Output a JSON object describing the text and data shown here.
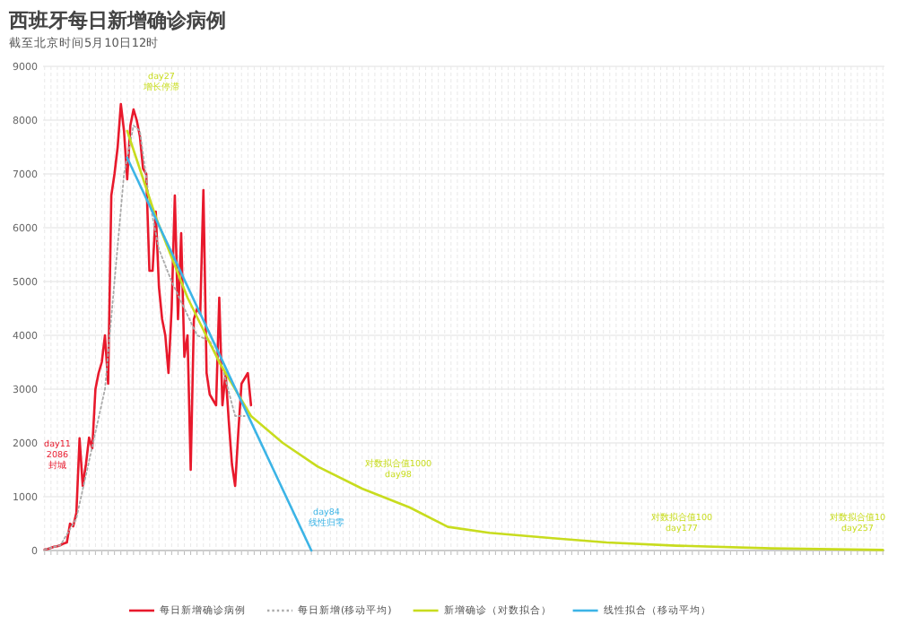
{
  "chart_data": {
    "type": "line",
    "title": "西班牙每日新增确诊病例",
    "subtitle": "截至北京时间5月10日12时",
    "categories": [
      null,
      null,
      null,
      null,
      null,
      null,
      null,
      null,
      null,
      null,
      null,
      null,
      null,
      null,
      null,
      null,
      null,
      null,
      null,
      null,
      null,
      null,
      null,
      null,
      null,
      null,
      null,
      null,
      null,
      null,
      null,
      null,
      null,
      null,
      null,
      null,
      null,
      null,
      null,
      null,
      null,
      null,
      null,
      null,
      null,
      null,
      null,
      null,
      null,
      null,
      null,
      null,
      null,
      null,
      null,
      null,
      null,
      null,
      null,
      null,
      null,
      null,
      null,
      null,
      null,
      null,
      null,
      null,
      null,
      null,
      null,
      null,
      null,
      null,
      null,
      null,
      null,
      null,
      null,
      null,
      null,
      null,
      null,
      null,
      null,
      null,
      null,
      null,
      null,
      null,
      null,
      null,
      null,
      null,
      null,
      null,
      null,
      null,
      null,
      null,
      null,
      null,
      null,
      null,
      null,
      null,
      null,
      null,
      null,
      null,
      null,
      null,
      null,
      null,
      null,
      null,
      null,
      null,
      null,
      null,
      null,
      null,
      null,
      null,
      null,
      null,
      null,
      null,
      null,
      null,
      null,
      null,
      null,
      null,
      null,
      null,
      null,
      null,
      null,
      null,
      null,
      null,
      null,
      null,
      null,
      null,
      null,
      null,
      null,
      null,
      null,
      null,
      null,
      null,
      null,
      null,
      null,
      null,
      null,
      null,
      null,
      null,
      null,
      null,
      null,
      null,
      null,
      null,
      null,
      null,
      null,
      null,
      null,
      null,
      null,
      null,
      null,
      null,
      null,
      null,
      null,
      null,
      null,
      null,
      null,
      null,
      null,
      null,
      null,
      null,
      null,
      null,
      null,
      null,
      null,
      null,
      null,
      null,
      null,
      null,
      null,
      null,
      null,
      null,
      null,
      null,
      null,
      null,
      null,
      null,
      null,
      null,
      null,
      null,
      null,
      null,
      null,
      null,
      null,
      null,
      null,
      null,
      null,
      null,
      null,
      null,
      null,
      null,
      null,
      null,
      null,
      null,
      null,
      null,
      null,
      null,
      null,
      null,
      null,
      null,
      null,
      null,
      null,
      null,
      null,
      null,
      null,
      null,
      null,
      null,
      null,
      null,
      null,
      null,
      null,
      null,
      null,
      null,
      null,
      null,
      null,
      null,
      null,
      null,
      null
    ],
    "ylim": [
      0,
      9000
    ],
    "yticks": [
      0,
      1000,
      2000,
      3000,
      4000,
      5000,
      6000,
      7000,
      8000,
      9000
    ],
    "grid": true,
    "legend": "bottom",
    "marker": "none",
    "series": [
      {
        "name": "每日新增确诊病例",
        "color": "#e8192c",
        "line_style": "solid",
        "values": [
          20,
          30,
          50,
          70,
          80,
          100,
          130,
          150,
          500,
          450,
          700,
          2086,
          1200,
          1600,
          2100,
          1900,
          3000,
          3300,
          3500,
          4000,
          3100,
          6600,
          7000,
          7500,
          8300,
          7800,
          6900,
          7900,
          8200,
          8000,
          7700,
          7100,
          7000,
          5200,
          5200,
          6300,
          4900,
          4300,
          4000,
          3300,
          4500,
          6600,
          4300,
          5900,
          3600,
          4000,
          1500,
          4300,
          4500,
          4400,
          6700,
          3300,
          2900,
          2800,
          2700,
          4700,
          2700,
          3300,
          2400,
          1600,
          1200,
          2200,
          3100,
          3200,
          3300,
          2700,
          null,
          null,
          null,
          null,
          null,
          null,
          null,
          null,
          null,
          null,
          null,
          null,
          null,
          null,
          null,
          null,
          null,
          null,
          null,
          null,
          null,
          null,
          null,
          null,
          null,
          null,
          null,
          null,
          null,
          null,
          null,
          null,
          null,
          null,
          null,
          null,
          null,
          null,
          null,
          null,
          null,
          null,
          null,
          null,
          null,
          null,
          null,
          null,
          null,
          null,
          null,
          null,
          null,
          null,
          null,
          null,
          null,
          null,
          null,
          null,
          null,
          null,
          null,
          null,
          null,
          null,
          null,
          null,
          null,
          null,
          null,
          null,
          null,
          null,
          null,
          null,
          null,
          null,
          null,
          null,
          null,
          null,
          null,
          null,
          null,
          null,
          null,
          null,
          null,
          null,
          null,
          null,
          null,
          null,
          null,
          null,
          null,
          null,
          null,
          null,
          null,
          null,
          null,
          null,
          null,
          null,
          null,
          null,
          null,
          null,
          null,
          null,
          null,
          null,
          null,
          null,
          null,
          null,
          null,
          null,
          null,
          null,
          null,
          null,
          null,
          null,
          null,
          null,
          null,
          null,
          null,
          null,
          null,
          null,
          null,
          null,
          null,
          null,
          null,
          null,
          null,
          null,
          null,
          null,
          null,
          null,
          null,
          null,
          null,
          null,
          null,
          null,
          null,
          null,
          null,
          null,
          null,
          null,
          null,
          null,
          null,
          null,
          null,
          null,
          null,
          null,
          null,
          null,
          null,
          null,
          null,
          null,
          null,
          null,
          null,
          null,
          null,
          null,
          null,
          null,
          null,
          null,
          null,
          null,
          null,
          null,
          null,
          null,
          null,
          null,
          null,
          null,
          null,
          null,
          null,
          null,
          null,
          null,
          null
        ]
      },
      {
        "name": "每日新增(移动平均)",
        "color": "#aaaaaa",
        "line_style": "dotted",
        "values": [
          20,
          null,
          null,
          null,
          null,
          100,
          null,
          null,
          null,
          null,
          600,
          null,
          null,
          1400,
          null,
          null,
          2200,
          null,
          null,
          3000,
          null,
          null,
          5000,
          null,
          null,
          7000,
          null,
          null,
          7900,
          null,
          7800,
          null,
          null,
          6500,
          null,
          null,
          5600,
          null,
          null,
          null,
          5000,
          null,
          null,
          null,
          4500,
          null,
          null,
          null,
          4000,
          null,
          null,
          null,
          3900,
          null,
          null,
          null,
          3400,
          null,
          null,
          null,
          2500,
          null,
          null,
          2500,
          null,
          null,
          null,
          null,
          null,
          null,
          null,
          null,
          null,
          null,
          null,
          null,
          null,
          null,
          null,
          null,
          null,
          null,
          null,
          null,
          null,
          null,
          null,
          null,
          null,
          null,
          null,
          null,
          null,
          null,
          null,
          null,
          null,
          null,
          null,
          null,
          null,
          null,
          null,
          null,
          null,
          null,
          null,
          null,
          null,
          null,
          null,
          null,
          null,
          null,
          null,
          null,
          null,
          null,
          null,
          null,
          null,
          null,
          null,
          null,
          null,
          null,
          null,
          null,
          null,
          null,
          null,
          null,
          null,
          null,
          null,
          null,
          null,
          null,
          null,
          null,
          null,
          null,
          null,
          null,
          null,
          null,
          null,
          null,
          null,
          null,
          null,
          null,
          null,
          null,
          null,
          null,
          null,
          null,
          null,
          null,
          null,
          null,
          null,
          null,
          null,
          null,
          null,
          null,
          null,
          null,
          null,
          null,
          null,
          null,
          null,
          null,
          null,
          null,
          null,
          null,
          null,
          null,
          null,
          null,
          null,
          null,
          null,
          null,
          null,
          null,
          null,
          null,
          null,
          null,
          null,
          null,
          null,
          null,
          null,
          null,
          null,
          null,
          null,
          null,
          null,
          null,
          null,
          null,
          null,
          null,
          null,
          null,
          null,
          null,
          null,
          null,
          null,
          null,
          null,
          null,
          null,
          null,
          null,
          null,
          null,
          null,
          null,
          null,
          null,
          null,
          null,
          null,
          null,
          null,
          null,
          null,
          null,
          null,
          null,
          null,
          null,
          null,
          null,
          null,
          null,
          null,
          null,
          null,
          null,
          null,
          null,
          null,
          null,
          null,
          null,
          null,
          null,
          null,
          null,
          null,
          null,
          null,
          null,
          null,
          null
        ]
      },
      {
        "name": "新增确诊（对数拟合）",
        "color": "#c8dc1e",
        "line_style": "solid",
        "values": [
          null,
          null,
          null,
          null,
          null,
          null,
          null,
          null,
          null,
          null,
          null,
          null,
          null,
          null,
          null,
          null,
          null,
          null,
          null,
          null,
          null,
          null,
          null,
          null,
          null,
          null,
          7800,
          null,
          null,
          null,
          null,
          null,
          null,
          null,
          null,
          6200,
          null,
          null,
          null,
          null,
          null,
          null,
          null,
          null,
          null,
          4700,
          null,
          null,
          null,
          null,
          null,
          null,
          null,
          null,
          null,
          3500,
          null,
          null,
          null,
          null,
          null,
          null,
          null,
          null,
          null,
          2500,
          null,
          null,
          null,
          null,
          null,
          null,
          null,
          null,
          null,
          2000,
          null,
          null,
          null,
          null,
          null,
          null,
          null,
          null,
          null,
          null,
          1560,
          null,
          null,
          null,
          null,
          null,
          null,
          null,
          null,
          null,
          null,
          null,
          null,
          null,
          1150,
          null,
          null,
          null,
          null,
          null,
          null,
          null,
          null,
          null,
          null,
          null,
          null,
          null,
          null,
          800,
          null,
          null,
          null,
          null,
          null,
          null,
          null,
          null,
          null,
          null,
          null,
          440,
          null,
          null,
          null,
          null,
          null,
          null,
          null,
          null,
          null,
          null,
          null,
          null,
          330,
          null,
          null,
          null,
          null,
          null,
          null,
          null,
          null,
          null,
          null,
          null,
          null,
          null,
          null,
          null,
          null,
          null,
          null,
          null,
          230,
          null,
          null,
          null,
          null,
          null,
          null,
          null,
          null,
          null,
          null,
          null,
          null,
          null,
          null,
          null,
          null,
          150,
          null,
          null,
          null,
          null,
          null,
          null,
          null,
          null,
          null,
          null,
          null,
          null,
          null,
          null,
          null,
          null,
          null,
          null,
          null,
          null,
          null,
          90,
          null,
          null,
          null,
          null,
          null,
          null,
          null,
          null,
          null,
          null,
          null,
          null,
          null,
          null,
          null,
          null,
          null,
          null,
          null,
          null,
          null,
          null,
          null,
          null,
          null,
          null,
          null,
          null,
          null,
          40,
          null,
          null,
          null,
          null,
          null,
          null,
          null,
          null,
          null,
          null,
          null,
          null,
          null,
          null,
          null,
          null,
          null,
          null,
          null,
          null,
          null,
          null,
          null,
          null,
          null,
          null,
          null,
          null,
          null,
          null,
          null,
          null,
          null,
          null,
          10
        ]
      },
      {
        "name": "线性拟合（移动平均）",
        "color": "#3cb4e6",
        "line_style": "solid",
        "values": [
          null,
          null,
          null,
          null,
          null,
          null,
          null,
          null,
          null,
          null,
          null,
          null,
          null,
          null,
          null,
          null,
          null,
          null,
          null,
          null,
          null,
          null,
          null,
          null,
          null,
          null,
          7300,
          null,
          null,
          null,
          null,
          null,
          null,
          null,
          null,
          null,
          null,
          null,
          null,
          null,
          null,
          null,
          null,
          null,
          null,
          null,
          null,
          null,
          null,
          null,
          null,
          null,
          null,
          null,
          null,
          null,
          null,
          null,
          null,
          null,
          null,
          null,
          null,
          null,
          null,
          null,
          null,
          null,
          null,
          null,
          null,
          null,
          null,
          null,
          null,
          null,
          null,
          null,
          null,
          null,
          null,
          null,
          null,
          null,
          0,
          null,
          null,
          null,
          null,
          null,
          null,
          null,
          null,
          null,
          null,
          null,
          null,
          null,
          null,
          null,
          null,
          null,
          null,
          null,
          null,
          null,
          null,
          null,
          null,
          null,
          null,
          null,
          null,
          null,
          null,
          null,
          null,
          null,
          null,
          null,
          null,
          null,
          null,
          null,
          null,
          null,
          null,
          null,
          null,
          null,
          null,
          null,
          null,
          null,
          null,
          null,
          null,
          null,
          null,
          null,
          null,
          null,
          null,
          null,
          null,
          null,
          null,
          null,
          null,
          null,
          null,
          null,
          null,
          null,
          null,
          null,
          null,
          null,
          null,
          null,
          null,
          null,
          null,
          null,
          null,
          null,
          null,
          null,
          null,
          null,
          null,
          null,
          null,
          null,
          null,
          null,
          null,
          null,
          null,
          null,
          null,
          null,
          null,
          null,
          null,
          null,
          null,
          null,
          null,
          null,
          null,
          null,
          null,
          null,
          null,
          null,
          null,
          null,
          null,
          null,
          null,
          null,
          null,
          null,
          null,
          null,
          null,
          null,
          null,
          null,
          null,
          null,
          null,
          null,
          null,
          null,
          null,
          null,
          null,
          null,
          null,
          null,
          null,
          null,
          null,
          null,
          null,
          null,
          null,
          null,
          null,
          null,
          null,
          null,
          null,
          null,
          null,
          null,
          null,
          null,
          null,
          null,
          null,
          null,
          null,
          null,
          null,
          null,
          null,
          null,
          null,
          null,
          null,
          null,
          null,
          null,
          null,
          null,
          null,
          null,
          null,
          null,
          null,
          null,
          null
        ]
      }
    ],
    "annotations": [
      "day11\n2086\n封城",
      "day27\n增长停滞",
      "day84\n线性归零",
      "对数拟合值1000\nday98",
      "对数拟合值100\nday177",
      "对数拟合值10\nday257"
    ]
  }
}
